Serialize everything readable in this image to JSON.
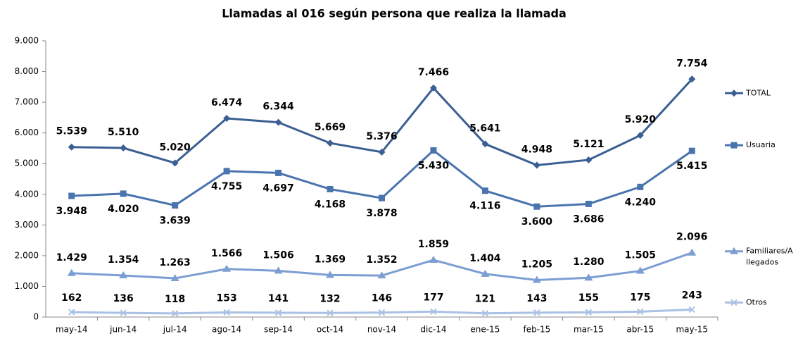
{
  "chart_data": {
    "type": "line",
    "title": "Llamadas al 016 según persona que realiza la llamada",
    "categories": [
      "may-14",
      "jun-14",
      "jul-14",
      "ago-14",
      "sep-14",
      "oct-14",
      "nov-14",
      "dic-14",
      "ene-15",
      "feb-15",
      "mar-15",
      "abr-15",
      "may-15"
    ],
    "series": [
      {
        "name": "TOTAL",
        "color": "#3b5f92",
        "marker": "diamond",
        "values": [
          5539,
          5510,
          5020,
          6474,
          6344,
          5669,
          5376,
          7466,
          5641,
          4948,
          5121,
          5920,
          7754
        ],
        "value_labels": [
          "5.539",
          "5.510",
          "5.020",
          "6.474",
          "6.344",
          "5.669",
          "5.376",
          "7.466",
          "5.641",
          "4.948",
          "5.121",
          "5.920",
          "7.754"
        ]
      },
      {
        "name": "Usuaria",
        "color": "#4a74ae",
        "marker": "square",
        "values": [
          3948,
          4020,
          3639,
          4755,
          4697,
          4168,
          3878,
          5430,
          4116,
          3600,
          3686,
          4240,
          5415
        ],
        "value_labels": [
          "3.948",
          "4.020",
          "3.639",
          "4.755",
          "4.697",
          "4.168",
          "3.878",
          "5.430",
          "4.116",
          "3.600",
          "3.686",
          "4.240",
          "5.415"
        ]
      },
      {
        "name": "Familiares/Allegados",
        "color": "#7d9ed2",
        "marker": "triangle",
        "values": [
          1429,
          1354,
          1263,
          1566,
          1506,
          1369,
          1352,
          1859,
          1404,
          1205,
          1280,
          1505,
          2096
        ],
        "value_labels": [
          "1.429",
          "1.354",
          "1.263",
          "1.566",
          "1.506",
          "1.369",
          "1.352",
          "1.859",
          "1.404",
          "1.205",
          "1.280",
          "1.505",
          "2.096"
        ]
      },
      {
        "name": "Otros",
        "color": "#a9c1e3",
        "marker": "x",
        "values": [
          162,
          136,
          118,
          153,
          141,
          132,
          146,
          177,
          121,
          143,
          155,
          175,
          243
        ]
      }
    ],
    "ylim": [
      0,
      9000
    ],
    "yticks": [
      0,
      {
        "value": 1000,
        "label": "1.000"
      },
      {
        "value": 2000,
        "label": "2.000"
      },
      {
        "value": 3000,
        "label": "3.000"
      },
      {
        "value": 4000,
        "label": "4.000"
      },
      {
        "value": 5000,
        "label": "5.000"
      },
      {
        "value": 6000,
        "label": "6.000"
      },
      {
        "value": 7000,
        "label": "7.000"
      },
      {
        "value": 8000,
        "label": "8.000"
      },
      {
        "value": 9000,
        "label": "9.000"
      }
    ],
    "legend": "right"
  }
}
